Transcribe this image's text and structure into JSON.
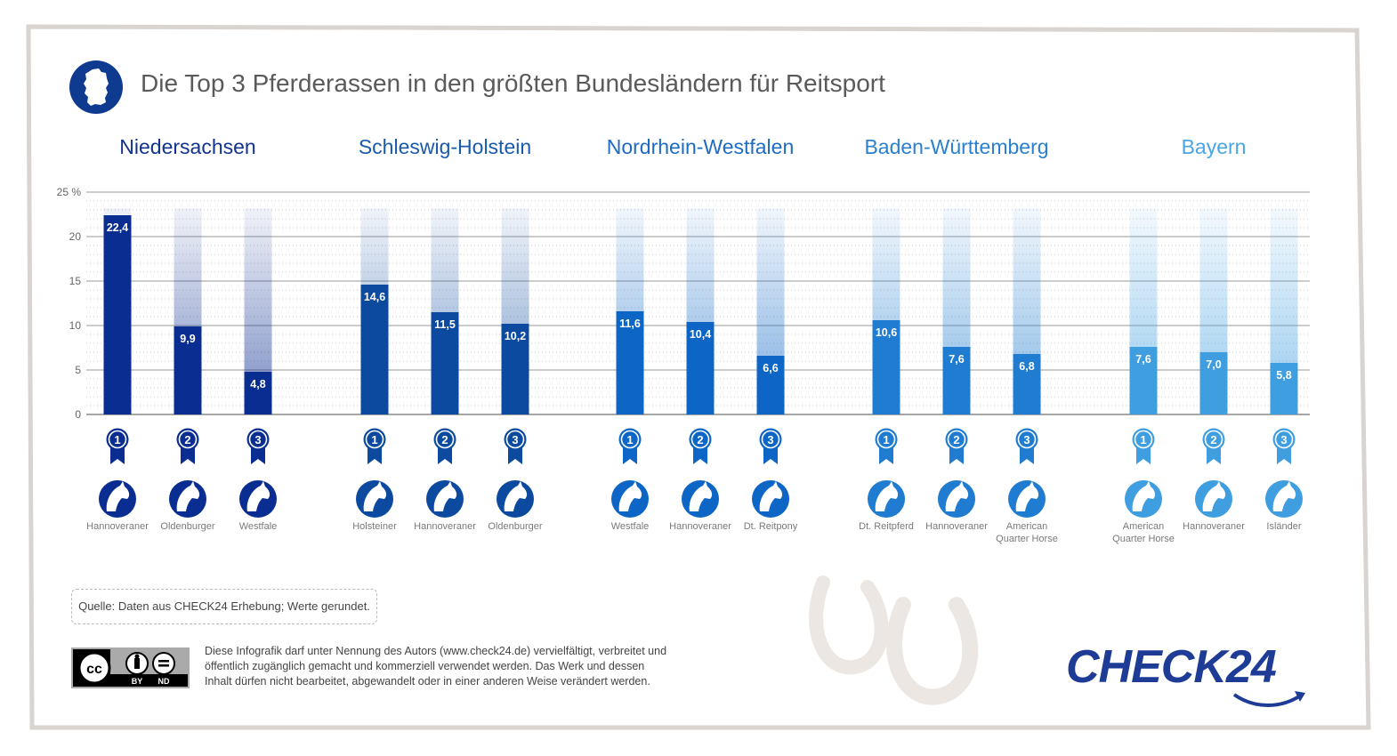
{
  "title": "Die Top 3 Pferderassen in den größten Bundesländern für Reitsport",
  "colors": {
    "accent_dark": "#0e3a8f",
    "brand": "#1e3c96",
    "text": "#5a5a5a"
  },
  "chart_data": {
    "type": "bar",
    "title": "Die Top 3 Pferderassen in den größten Bundesländern für Reitsport",
    "ylim": [
      0,
      25
    ],
    "y_ticks": [
      "0",
      "5",
      "10",
      "15",
      "20",
      "25 %"
    ],
    "unit": "%",
    "grid": true,
    "groups": [
      {
        "name": "Niedersachsen",
        "color": "#0a2d91",
        "bars": [
          {
            "rank": "1",
            "breed": "Hannoveraner",
            "value": 22.4,
            "label": "22,4"
          },
          {
            "rank": "2",
            "breed": "Oldenburger",
            "value": 9.9,
            "label": "9,9"
          },
          {
            "rank": "3",
            "breed": "Westfale",
            "value": 4.8,
            "label": "4,8"
          }
        ]
      },
      {
        "name": "Schleswig-Holstein",
        "color": "#0c4aa0",
        "bars": [
          {
            "rank": "1",
            "breed": "Holsteiner",
            "value": 14.6,
            "label": "14,6"
          },
          {
            "rank": "2",
            "breed": "Hannoveraner",
            "value": 11.5,
            "label": "11,5"
          },
          {
            "rank": "3",
            "breed": "Oldenburger",
            "value": 10.2,
            "label": "10,2"
          }
        ]
      },
      {
        "name": "Nordrhein-Westfalen",
        "color": "#0d66c6",
        "bars": [
          {
            "rank": "1",
            "breed": "Westfale",
            "value": 11.6,
            "label": "11,6"
          },
          {
            "rank": "2",
            "breed": "Hannoveraner",
            "value": 10.4,
            "label": "10,4"
          },
          {
            "rank": "3",
            "breed": "Dt. Reitpony",
            "value": 6.6,
            "label": "6,6"
          }
        ]
      },
      {
        "name": "Baden-Württemberg",
        "color": "#1f7cd0",
        "bars": [
          {
            "rank": "1",
            "breed": "Dt. Reitpferd",
            "value": 10.6,
            "label": "10,6"
          },
          {
            "rank": "2",
            "breed": "Hannoveraner",
            "value": 7.6,
            "label": "7,6"
          },
          {
            "rank": "3",
            "breed": "American Quarter Horse",
            "value": 6.8,
            "label": "6,8"
          }
        ]
      },
      {
        "name": "Bayern",
        "color": "#3f9ee0",
        "bars": [
          {
            "rank": "1",
            "breed": "American Quarter Horse",
            "value": 7.6,
            "label": "7,6"
          },
          {
            "rank": "2",
            "breed": "Hannoveraner",
            "value": 7.0,
            "label": "7,0"
          },
          {
            "rank": "3",
            "breed": "Isländer",
            "value": 5.8,
            "label": "5,8"
          }
        ]
      }
    ]
  },
  "source": "Quelle: Daten aus CHECK24 Erhebung; Werte gerundet.",
  "license": {
    "badge_text": [
      "cc",
      "BY",
      "ND"
    ],
    "lines": [
      "Diese Infografik darf unter Nennung des Autors (www.check24.de) vervielfältigt, verbreitet und",
      "öffentlich zugänglich gemacht und kommerziell verwendet werden. Das Werk und dessen",
      "Inhalt dürfen nicht bearbeitet, abgewandelt oder in einer anderen Weise verändert werden."
    ]
  },
  "brand": "CHECK24",
  "icons": {
    "title_badge": "germany-map-icon",
    "rank": "rank-ribbon-icon",
    "breed": "horse-head-icon",
    "decor": "horseshoe-icon"
  }
}
